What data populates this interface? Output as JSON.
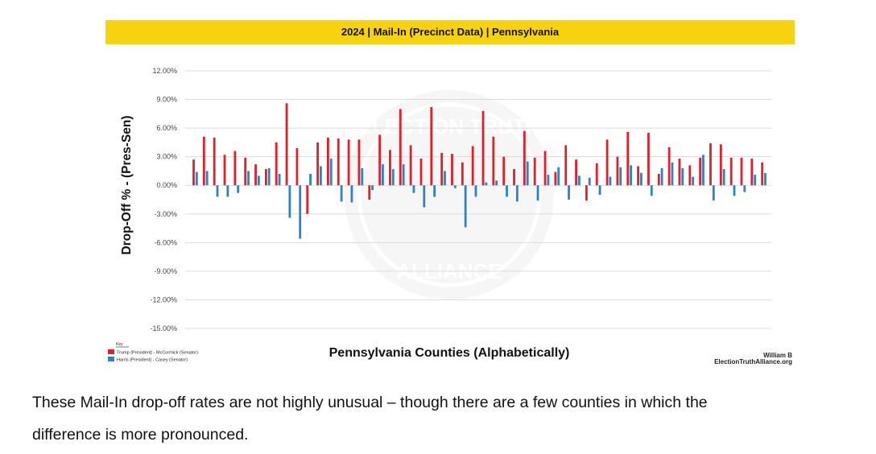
{
  "chart_data": {
    "type": "bar",
    "title": "2024 | Mail-In (Precinct Data) | Pennsylvania",
    "xlabel": "Pennsylvania Counties (Alphabetically)",
    "ylabel": "Drop-Off % - (Pres-Sen)",
    "ylim": [
      -15,
      12
    ],
    "yticks": [
      "12.00%",
      "9.00%",
      "6.00%",
      "3.00%",
      "0.00%",
      "-3.00%",
      "-6.00%",
      "-9.00%",
      "-12.00%",
      "-15.00%"
    ],
    "grid": true,
    "legend_position": "bottom-left",
    "legend_title": "Key",
    "series": [
      {
        "name": "Trump (President) - McCormick (Senator)",
        "color": "#e0202a",
        "values": [
          2.7,
          5.1,
          5.0,
          3.2,
          3.6,
          2.9,
          2.2,
          1.7,
          4.5,
          8.6,
          3.9,
          -3.0,
          4.5,
          5.0,
          4.9,
          4.8,
          4.8,
          -1.5,
          5.3,
          3.7,
          8.0,
          4.2,
          2.8,
          8.2,
          3.4,
          3.3,
          2.4,
          4.1,
          7.8,
          5.1,
          3.0,
          1.7,
          5.7,
          2.9,
          3.6,
          1.4,
          4.2,
          2.7,
          -1.6,
          2.3,
          4.8,
          3.0,
          5.6,
          2.0,
          5.5,
          1.2,
          4.0,
          2.8,
          2.1,
          2.9,
          4.4,
          4.3,
          2.9,
          2.9,
          2.8,
          2.4
        ]
      },
      {
        "name": "Harris (President) - Casey (Senator)",
        "color": "#2f82c3",
        "values": [
          1.4,
          1.5,
          -1.2,
          -1.2,
          -0.8,
          1.5,
          1.0,
          1.8,
          1.2,
          -3.4,
          -5.6,
          1.2,
          2.0,
          2.8,
          -1.7,
          -1.8,
          1.8,
          -0.5,
          2.2,
          1.7,
          2.2,
          -0.8,
          -2.3,
          -1.2,
          1.5,
          -0.3,
          -4.4,
          -1.2,
          0.3,
          0.5,
          -1.2,
          -1.7,
          2.5,
          -1.6,
          1.1,
          1.9,
          -1.5,
          1.0,
          0.8,
          -1.0,
          0.9,
          1.9,
          2.1,
          1.3,
          -1.1,
          1.8,
          2.4,
          1.8,
          0.9,
          3.2,
          -1.6,
          1.7,
          -1.1,
          -0.7,
          1.1,
          1.3
        ]
      }
    ]
  },
  "watermark": {
    "lines": [
      "ELECTION TRUTH",
      "ALLIANCE"
    ]
  },
  "credit": {
    "author": "William B",
    "site": "ElectionTruthAlliance.org"
  },
  "caption": {
    "line1": "These Mail-In drop-off rates are not highly unusual – though there are a few counties in which the",
    "line2": "difference is more pronounced."
  }
}
